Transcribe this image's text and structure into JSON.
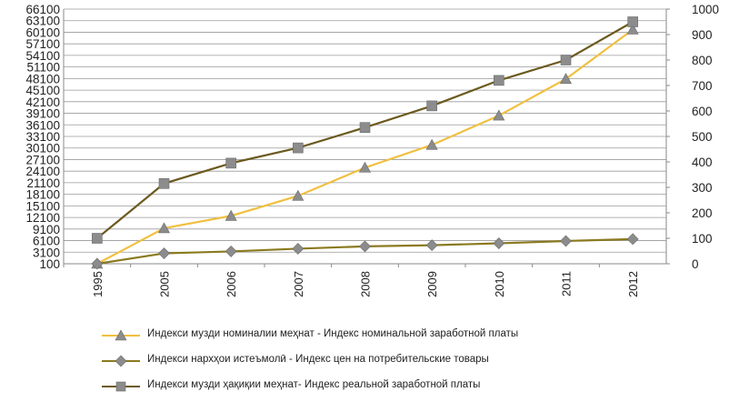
{
  "chart_data": {
    "type": "line",
    "categories": [
      "1995",
      "2005",
      "2006",
      "2007",
      "2008",
      "2009",
      "2010",
      "2011",
      "2012"
    ],
    "y_left": {
      "ylim": [
        100,
        66100
      ],
      "ticks": [
        "100",
        "3100",
        "6100",
        "9100",
        "12100",
        "15100",
        "18100",
        "21100",
        "24100",
        "27100",
        "30100",
        "33100",
        "36100",
        "39100",
        "42100",
        "45100",
        "48100",
        "51100",
        "54100",
        "57100",
        "60100",
        "63100",
        "66100"
      ]
    },
    "y_right": {
      "ylim": [
        0,
        1000
      ],
      "ticks": [
        "0",
        "100",
        "200",
        "300",
        "400",
        "500",
        "600",
        "700",
        "800",
        "900",
        "1000"
      ]
    },
    "grid": true,
    "legend_position": "bottom",
    "series": [
      {
        "name": "Индекси музди номиналии меҳнат  - Индекс номинальной заработной платы",
        "axis": "left",
        "marker": "triangle",
        "color": "#F0C040",
        "values": [
          100,
          9300,
          12500,
          17700,
          25000,
          30900,
          38500,
          48000,
          60800
        ]
      },
      {
        "name": "Индекси нархҳои истеъмолӣ  - Индекс цен на потребительские товары",
        "axis": "left",
        "marker": "diamond",
        "color": "#8B7A20",
        "values": [
          100,
          2800,
          3300,
          4000,
          4600,
          4900,
          5400,
          6000,
          6500
        ]
      },
      {
        "name": "Индекси музди ҳақиқии меҳнат-  Индекс реальной заработной платы",
        "axis": "right",
        "marker": "square",
        "color": "#6B5A1E",
        "values": [
          100,
          315,
          395,
          455,
          535,
          620,
          720,
          800,
          950
        ]
      }
    ]
  }
}
